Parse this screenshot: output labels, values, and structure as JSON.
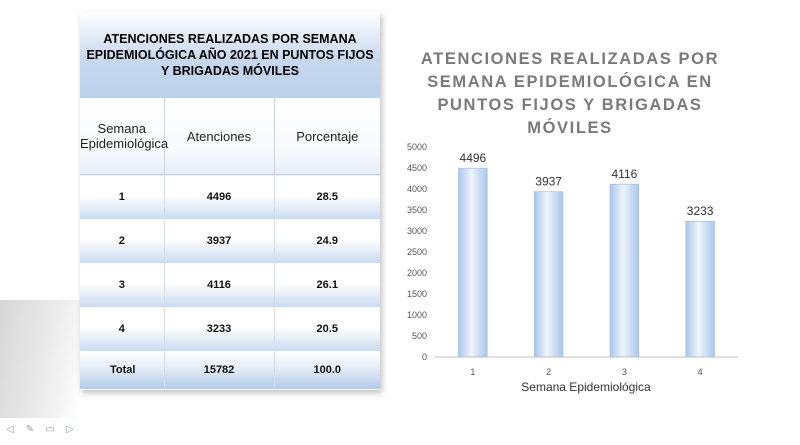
{
  "table": {
    "title": "ATENCIONES REALIZADAS POR SEMANA EPIDEMIOLÓGICA AÑO 2021 EN PUNTOS FIJOS Y BRIGADAS MÓVILES",
    "col_week": "Semana Epidemiológica",
    "col_att": "Atenciones",
    "col_pct": "Porcentaje",
    "rows": [
      {
        "week": "1",
        "att": "4496",
        "pct": "28.5"
      },
      {
        "week": "2",
        "att": "3937",
        "pct": "24.9"
      },
      {
        "week": "3",
        "att": "4116",
        "pct": "26.1"
      },
      {
        "week": "4",
        "att": "3233",
        "pct": "20.5"
      }
    ],
    "total": {
      "label": "Total",
      "att": "15782",
      "pct": "100.0"
    }
  },
  "chart_data": {
    "type": "bar",
    "title": "ATENCIONES REALIZADAS POR SEMANA EPIDEMIOLÓGICA EN PUNTOS FIJOS Y BRIGADAS MÓVILES",
    "categories": [
      "1",
      "2",
      "3",
      "4"
    ],
    "values": [
      4496,
      3937,
      4116,
      3233
    ],
    "xlabel": "Semana Epidemiológica",
    "ylabel": "",
    "ylim": [
      0,
      5000
    ],
    "yticks": [
      0,
      500,
      1000,
      1500,
      2000,
      2500,
      3000,
      3500,
      4000,
      4500,
      5000
    ],
    "grid": false,
    "legend": "none",
    "bar_color": "#bcd3ee"
  },
  "nav_icons": [
    "arrow-left-icon",
    "pen-icon",
    "menu-icon",
    "arrow-right-icon"
  ]
}
